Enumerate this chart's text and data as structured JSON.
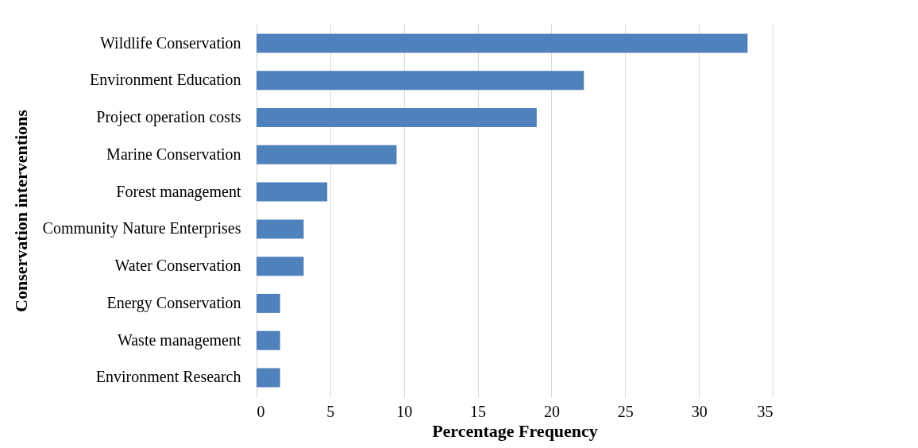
{
  "chart_data": {
    "type": "bar",
    "orientation": "horizontal",
    "xlabel": "Percentage Frequency",
    "ylabel": "Conservation interventions",
    "categories": [
      "Wildlife Conservation",
      "Environment Education",
      "Project operation costs",
      "Marine Conservation",
      "Forest management",
      "Community Nature Enterprises",
      "Water Conservation",
      "Energy Conservation",
      "Waste management",
      "Environment Research"
    ],
    "values": [
      33.3,
      22.2,
      19.0,
      9.5,
      4.8,
      3.2,
      3.2,
      1.6,
      1.6,
      1.6
    ],
    "color": "#4f81bd",
    "xlim": [
      0,
      35
    ],
    "xticks": [
      0,
      5,
      10,
      15,
      20,
      25,
      30,
      35
    ],
    "grid": "x"
  }
}
